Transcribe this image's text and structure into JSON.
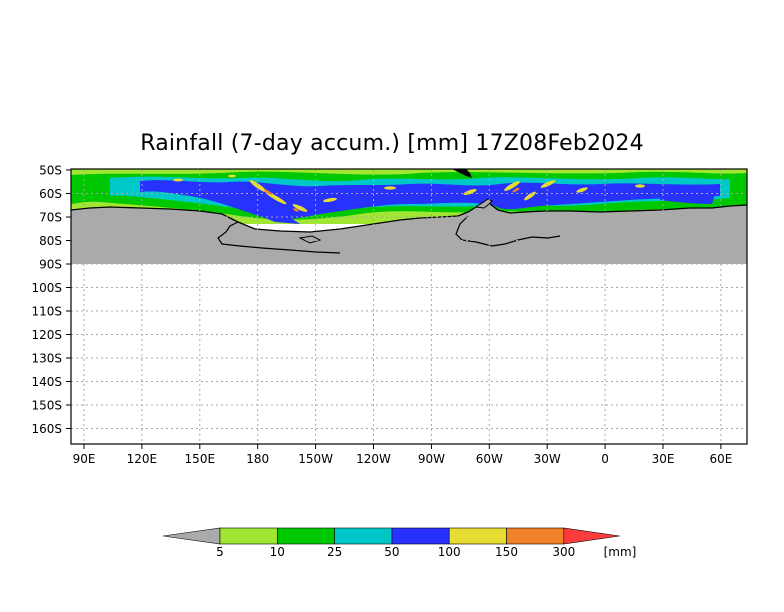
{
  "title": "Rainfall (7-day accum.) [mm] 17Z08Feb2024",
  "map": {
    "lat_labels": [
      "50S",
      "60S",
      "70S",
      "80S",
      "90S",
      "100S",
      "110S",
      "120S",
      "130S",
      "140S",
      "150S",
      "160S"
    ],
    "lon_labels": [
      "90E",
      "120E",
      "150E",
      "180",
      "150W",
      "120W",
      "90W",
      "60W",
      "30W",
      "0",
      "30E",
      "60E"
    ],
    "colors": {
      "land": "#aaaaaa",
      "lt5": "#ffffff",
      "c5_10": "#a0e632",
      "c10_25": "#00c800",
      "c25_50": "#00c8c8",
      "c50_100": "#2832ff",
      "c100_150": "#e6dc32",
      "c150_300": "#f08228",
      "c300p": "#fa3c3c",
      "grid": "#aaaaaa",
      "coast": "#000000"
    }
  },
  "legend": {
    "labels": [
      "5",
      "10",
      "25",
      "50",
      "100",
      "150",
      "300"
    ],
    "unit": "[mm]",
    "colors": [
      "#aaaaaa",
      "#a0e632",
      "#00c800",
      "#00c8c8",
      "#2832ff",
      "#e6dc32",
      "#f08228",
      "#fa3c3c"
    ]
  }
}
